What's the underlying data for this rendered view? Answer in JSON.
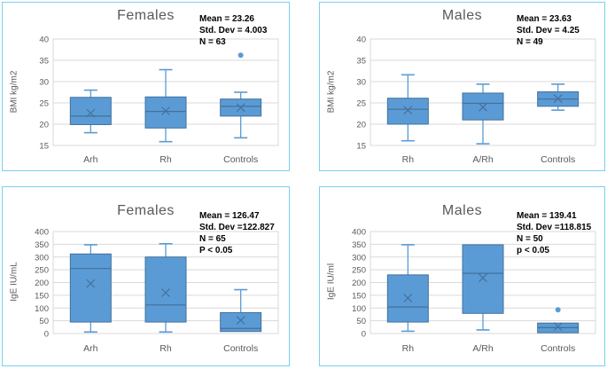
{
  "colors": {
    "box_fill": "#5B9BD5",
    "box_border": "#41719C",
    "whisker": "#5B9BD5",
    "median": "#41719C",
    "mean_marker": "#44719E",
    "outlier": "#5B9BD5",
    "gridline": "#D9D9D9",
    "axis_text": "#595959",
    "title_text": "#595959",
    "stats_text": "#000000",
    "panel_border": "#79D1ED",
    "background": "#FFFFFF"
  },
  "chart_data": [
    {
      "type": "box",
      "title": "Females",
      "ylabel": "BMI kg/m2",
      "ylim": [
        15,
        40
      ],
      "ystep": 5,
      "grid": true,
      "legend": false,
      "stats": [
        "Mean = 23.26",
        "Std. Dev = 4.003",
        "N = 63"
      ],
      "categories": [
        "Arh",
        "Rh",
        "Controls"
      ],
      "boxes": [
        {
          "category": "Arh",
          "whisker_low": 18,
          "q1": 19.9,
          "median": 21.9,
          "q3": 26.3,
          "whisker_high": 28,
          "mean": 22.6,
          "outliers": []
        },
        {
          "category": "Rh",
          "whisker_low": 15.9,
          "q1": 19.1,
          "median": 23,
          "q3": 26.4,
          "whisker_high": 32.8,
          "mean": 23.1,
          "outliers": []
        },
        {
          "category": "Controls",
          "whisker_low": 16.8,
          "q1": 21.9,
          "median": 24.2,
          "q3": 25.9,
          "whisker_high": 27.5,
          "mean": 23.9,
          "outliers": [
            36.2
          ]
        }
      ]
    },
    {
      "type": "box",
      "title": "Males",
      "ylabel": "BMI kg/m2",
      "ylim": [
        15,
        40
      ],
      "ystep": 5,
      "grid": true,
      "legend": false,
      "stats": [
        "Mean = 23.63",
        "Std. Dev = 4.25",
        "N = 49"
      ],
      "categories": [
        "Rh",
        "A/Rh",
        "Controls"
      ],
      "boxes": [
        {
          "category": "Rh",
          "whisker_low": 16.1,
          "q1": 20,
          "median": 23.5,
          "q3": 26.1,
          "whisker_high": 31.6,
          "mean": 23.3,
          "outliers": []
        },
        {
          "category": "A/Rh",
          "whisker_low": 15.4,
          "q1": 21,
          "median": 24.9,
          "q3": 27.3,
          "whisker_high": 29.4,
          "mean": 24,
          "outliers": []
        },
        {
          "category": "Controls",
          "whisker_low": 23.3,
          "q1": 24.2,
          "median": 25.9,
          "q3": 27.6,
          "whisker_high": 29.4,
          "mean": 26,
          "outliers": []
        }
      ]
    },
    {
      "type": "box",
      "title": "Females",
      "ylabel": "IgE IU/mL",
      "ylim": [
        0,
        400
      ],
      "ystep": 50,
      "grid": true,
      "legend": false,
      "stats": [
        "Mean = 126.47",
        "Std. Dev =122.827",
        "N = 65",
        "P < 0.05"
      ],
      "categories": [
        "Arh",
        "Rh",
        "Controls"
      ],
      "boxes": [
        {
          "category": "Arh",
          "whisker_low": 6,
          "q1": 45,
          "median": 255,
          "q3": 312,
          "whisker_high": 348,
          "mean": 196,
          "outliers": []
        },
        {
          "category": "Rh",
          "whisker_low": 6,
          "q1": 45,
          "median": 112,
          "q3": 300,
          "whisker_high": 352,
          "mean": 160,
          "outliers": []
        },
        {
          "category": "Controls",
          "whisker_low": 8,
          "q1": 8,
          "median": 20,
          "q3": 82,
          "whisker_high": 172,
          "mean": 52,
          "outliers": []
        }
      ]
    },
    {
      "type": "box",
      "title": "Males",
      "ylabel": "IgE IU/ml",
      "ylim": [
        0,
        400
      ],
      "ystep": 50,
      "grid": true,
      "legend": false,
      "stats": [
        "Mean = 139.41",
        "Std. Dev =118.815",
        "N = 50",
        "p < 0.05"
      ],
      "categories": [
        "Rh",
        "A/Rh",
        "Controls"
      ],
      "boxes": [
        {
          "category": "Rh",
          "whisker_low": 9,
          "q1": 45,
          "median": 104,
          "q3": 230,
          "whisker_high": 348,
          "mean": 139,
          "outliers": []
        },
        {
          "category": "A/Rh",
          "whisker_low": 14,
          "q1": 79,
          "median": 236,
          "q3": 348,
          "whisker_high": 348,
          "mean": 218,
          "outliers": []
        },
        {
          "category": "Controls",
          "whisker_low": 3,
          "q1": 3,
          "median": 23,
          "q3": 41,
          "whisker_high": 41,
          "mean": 27,
          "outliers": [
            93
          ]
        }
      ]
    }
  ]
}
